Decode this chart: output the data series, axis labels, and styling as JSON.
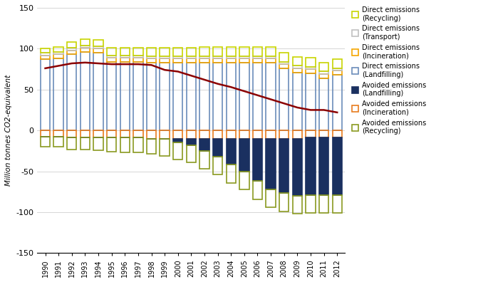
{
  "years": [
    1990,
    1991,
    1992,
    1993,
    1994,
    1995,
    1996,
    1997,
    1998,
    1999,
    2000,
    2001,
    2002,
    2003,
    2004,
    2005,
    2006,
    2007,
    2008,
    2009,
    2010,
    2011,
    2012
  ],
  "direct_recycling": [
    5,
    6,
    7,
    8,
    8,
    9,
    9,
    9,
    10,
    10,
    10,
    10,
    11,
    11,
    11,
    11,
    11,
    11,
    11,
    11,
    11,
    11,
    11
  ],
  "direct_transport": [
    3,
    3,
    3,
    3,
    3,
    3,
    3,
    3,
    3,
    3,
    3,
    3,
    3,
    3,
    3,
    3,
    3,
    3,
    3,
    3,
    3,
    3,
    3
  ],
  "direct_incineration": [
    5,
    5,
    5,
    5,
    5,
    5,
    5,
    5,
    5,
    5,
    5,
    5,
    5,
    5,
    5,
    5,
    5,
    5,
    5,
    5,
    5,
    5,
    5
  ],
  "direct_landfilling": [
    87,
    88,
    93,
    96,
    95,
    84,
    84,
    84,
    83,
    83,
    83,
    83,
    83,
    83,
    83,
    83,
    83,
    83,
    76,
    71,
    70,
    64,
    68
  ],
  "avoided_landfilling": [
    0,
    0,
    0,
    0,
    0,
    0,
    0,
    0,
    0,
    0,
    -5,
    -8,
    -15,
    -22,
    -32,
    -40,
    -52,
    -62,
    -67,
    -70,
    -70,
    -70,
    -70
  ],
  "avoided_incineration": [
    -8,
    -8,
    -9,
    -9,
    -9,
    -9,
    -9,
    -9,
    -10,
    -10,
    -10,
    -10,
    -10,
    -10,
    -10,
    -10,
    -10,
    -10,
    -10,
    -10,
    -9,
    -9,
    -9
  ],
  "avoided_recycling": [
    -12,
    -12,
    -14,
    -14,
    -15,
    -17,
    -18,
    -18,
    -19,
    -21,
    -21,
    -21,
    -22,
    -22,
    -22,
    -22,
    -22,
    -22,
    -22,
    -22,
    -22,
    -22,
    -22
  ],
  "net_emissions": [
    76,
    79,
    82,
    83,
    82,
    81,
    81,
    81,
    80,
    74,
    72,
    67,
    62,
    57,
    53,
    48,
    43,
    38,
    33,
    28,
    25,
    25,
    22
  ],
  "colors": {
    "direct_recycling": "#c8d400",
    "direct_transport": "#c0c0c0",
    "direct_incineration": "#f5a600",
    "direct_landfilling": "#6b8cba",
    "avoided_landfilling": "#1a3060",
    "avoided_incineration": "#e87c1e",
    "avoided_recycling": "#8a9a20",
    "net_line": "#8b0000"
  },
  "ylim": [
    -150,
    150
  ],
  "yticks": [
    -150,
    -100,
    -50,
    0,
    50,
    100,
    150
  ],
  "ylabel": "Million tonnes CO2-equivalent"
}
